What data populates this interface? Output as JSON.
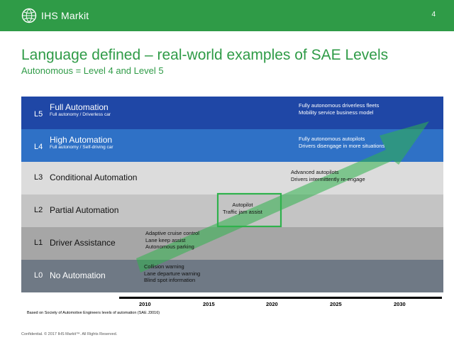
{
  "header": {
    "brand": "IHS Markit",
    "page_number": "4"
  },
  "title": "Language defined – real-world examples of SAE Levels",
  "subtitle": "Autonomous = Level 4 and Level 5",
  "levels": [
    {
      "code": "L5",
      "name": "Full Automation",
      "sub": "Full autonomy / Driverless car",
      "bg": "#1f47a6",
      "text_color": "#ffffff"
    },
    {
      "code": "L4",
      "name": "High Automation",
      "sub": "Full autonomy / Self-driving car",
      "bg": "#2f71c6",
      "text_color": "#ffffff"
    },
    {
      "code": "L3",
      "name": "Conditional Automation",
      "sub": "",
      "bg": "#dcdcdc",
      "text_color": "#111111"
    },
    {
      "code": "L2",
      "name": "Partial Automation",
      "sub": "",
      "bg": "#c4c4c4",
      "text_color": "#111111"
    },
    {
      "code": "L1",
      "name": "Driver Assistance",
      "sub": "",
      "bg": "#a6a6a6",
      "text_color": "#111111"
    },
    {
      "code": "L0",
      "name": "No Automation",
      "sub": "",
      "bg": "#6f7985",
      "text_color": "#ffffff"
    }
  ],
  "examples": {
    "l5": [
      "Fully autonomous driverless fleets",
      "Mobility service business model"
    ],
    "l4": [
      "Fully autonomous autopilots",
      "Drivers disengage in more situations"
    ],
    "l3": [
      "Advanced autopilots",
      "Drivers intermittently re-engage"
    ],
    "l2": [
      "Autopilot",
      "Traffic jam assist"
    ],
    "l1": [
      "Adaptive cruise control",
      "Lane keep assist",
      "Autonomous parking"
    ],
    "l0": [
      "Collision warning",
      "Lane departure warning",
      "Blind spot information"
    ]
  },
  "axis": {
    "ticks": [
      "2010",
      "2015",
      "2020",
      "2025",
      "2030"
    ]
  },
  "colors": {
    "brand_green": "#2f9b47",
    "arrow_green": "#2fb24c"
  },
  "footnote": "Based on Society of Automotive Engineers levels of automation (SAE J3016)",
  "confidential": "Confidential. © 2017 IHS Markit™. All Rights Reserved."
}
